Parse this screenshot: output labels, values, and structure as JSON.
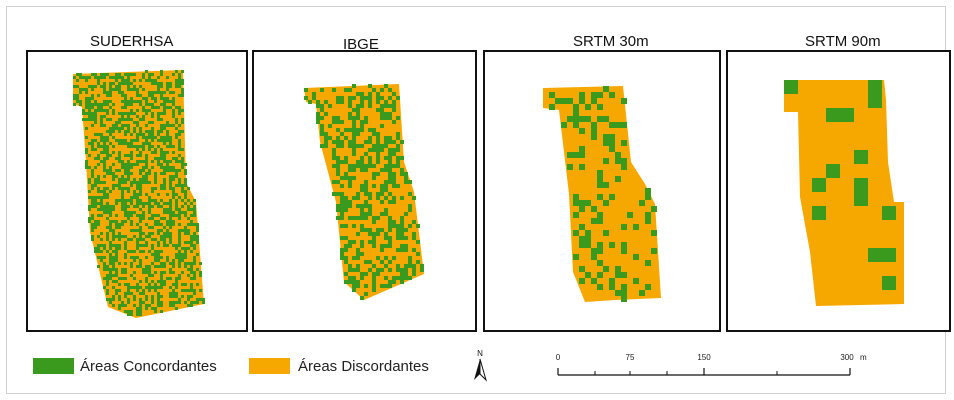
{
  "panels": [
    {
      "title": "SUDERHSA",
      "pattern": "fine-mixed"
    },
    {
      "title": "IBGE",
      "pattern": "medium-mixed"
    },
    {
      "title": "SRTM 30m",
      "pattern": "coarse-mostly-discordant"
    },
    {
      "title": "SRTM 90m",
      "pattern": "very-coarse-mostly-discordant"
    }
  ],
  "legend": {
    "concordant_label": "Áreas Concordantes",
    "discordant_label": "Áreas Discordantes",
    "concordant_color": "#3a9a1e",
    "discordant_color": "#f7a800"
  },
  "north_arrow": {
    "label": "N",
    "icon": "north-arrow-icon"
  },
  "scale_bar": {
    "ticks": [
      "0",
      "75",
      "150",
      "300"
    ],
    "unit": "m"
  }
}
